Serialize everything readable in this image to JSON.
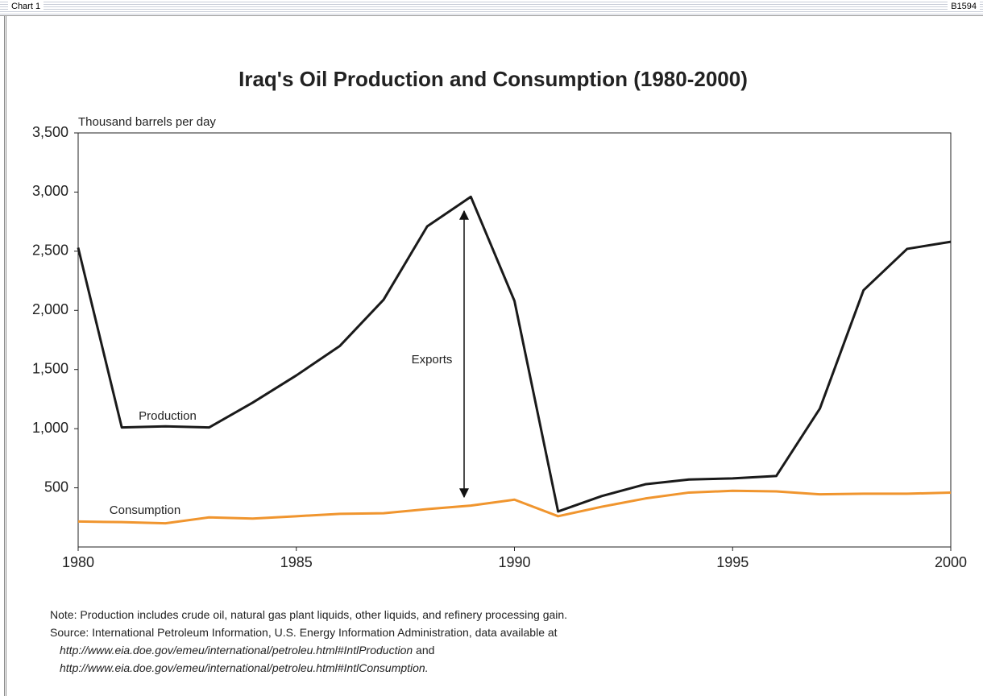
{
  "header": {
    "left": "Chart 1",
    "right": "B1594"
  },
  "chart_data": {
    "type": "line",
    "title": "Iraq's Oil Production and Consumption (1980-2000)",
    "ylabel": "Thousand barrels per day",
    "x": [
      1980,
      1981,
      1982,
      1983,
      1984,
      1985,
      1986,
      1987,
      1988,
      1989,
      1990,
      1991,
      1992,
      1993,
      1994,
      1995,
      1996,
      1997,
      1998,
      1999,
      2000
    ],
    "series": [
      {
        "name": "Production",
        "color": "#1a1a1a",
        "values": [
          2530,
          1010,
          1020,
          1010,
          1220,
          1450,
          1700,
          2090,
          2710,
          2960,
          2080,
          300,
          430,
          530,
          570,
          580,
          600,
          1170,
          2170,
          2520,
          2580
        ]
      },
      {
        "name": "Consumption",
        "color": "#f0952e",
        "values": [
          215,
          210,
          200,
          250,
          240,
          260,
          280,
          285,
          320,
          350,
          400,
          260,
          340,
          410,
          460,
          475,
          470,
          445,
          450,
          450,
          460
        ]
      }
    ],
    "annotation": "Exports",
    "xlim": [
      1980,
      2000
    ],
    "xticks": [
      1980,
      1985,
      1990,
      1995,
      2000
    ],
    "ylim": [
      0,
      3500
    ],
    "yticks": [
      500,
      {
        "value": 1000,
        "label": "1,000"
      },
      {
        "value": 1500,
        "label": "1,500"
      },
      {
        "value": 2000,
        "label": "2,000"
      },
      {
        "value": 2500,
        "label": "2,500"
      },
      {
        "value": 3000,
        "label": "3,000"
      },
      {
        "value": 3500,
        "label": "3,500"
      }
    ]
  },
  "notes": {
    "note_label": "Note:",
    "note": "Production includes crude oil, natural gas plant liquids, other liquids, and refinery processing gain.",
    "source_label": "Source:",
    "source": "International Petroleum Information, U.S. Energy Information Administration, data available at",
    "url1": "http://www.eia.doe.gov/emeu/international/petroleu.html#IntlProduction",
    "and": "and",
    "url2": "http://www.eia.doe.gov/emeu/international/petroleu.html#IntlConsumption."
  }
}
